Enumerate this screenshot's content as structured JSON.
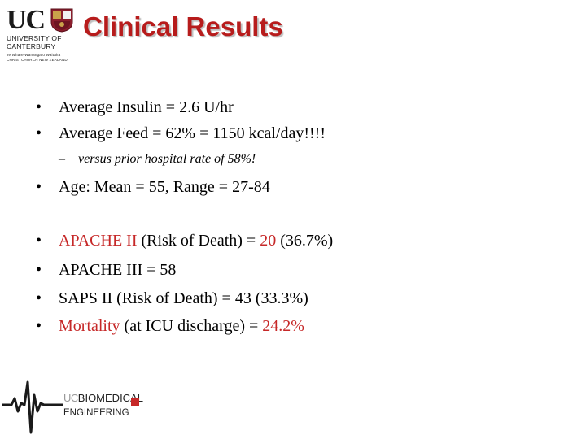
{
  "logo": {
    "letters": "UC",
    "line1": "UNIVERSITY OF",
    "line2": "CANTERBURY",
    "line3": "Te Whare Wānanga o Waitaha",
    "line4": "CHRISTCHURCH NEW ZEALAND"
  },
  "title": "Clinical Results",
  "bullets": [
    {
      "bullet": "•",
      "text": "Average Insulin = 2.6 U/hr"
    },
    {
      "bullet": "•",
      "text": "Average Feed = 62% = 1150 kcal/day!!!!"
    },
    {
      "dash": "–",
      "text": "versus prior hospital rate of 58%!"
    },
    {
      "bullet": "•",
      "text": "Age: Mean = 55, Range = 27-84"
    },
    {
      "bullet": "•",
      "red": "APACHE II",
      "mid": " (Risk of Death) = ",
      "red2": "20",
      "tail": " (36.7%)"
    },
    {
      "bullet": "•",
      "text": "APACHE III = 58"
    },
    {
      "bullet": "•",
      "text": "SAPS II (Risk of Death) = 43 (33.3%)"
    },
    {
      "bullet": "•",
      "red": "Mortality",
      "mid": " (at ICU discharge) = ",
      "red2": "24.2%"
    }
  ],
  "footer_logo": {
    "line1_prefix": "UC",
    "line1": "BIOMEDICAL",
    "line2": "ENGINEERING"
  },
  "colors": {
    "title": "#b71c1c",
    "highlight": "#c62828"
  }
}
